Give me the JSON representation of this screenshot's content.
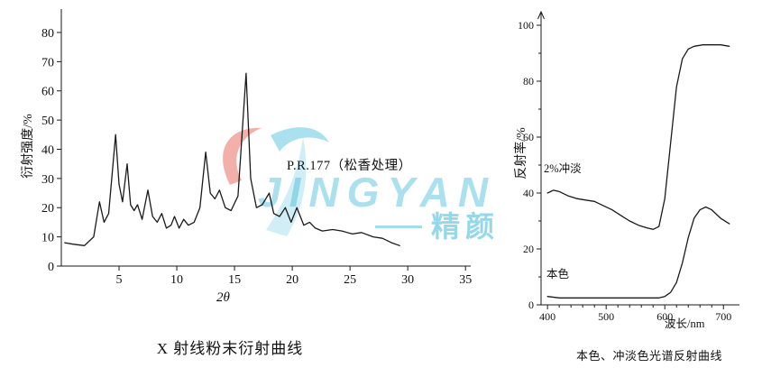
{
  "watermark": {
    "line1": "JINGYAN",
    "line2": "精颜"
  },
  "chart_data": [
    {
      "type": "line",
      "title": "X 射线粉末衍射曲线",
      "xlabel": "2θ",
      "ylabel": "衍射强度/%",
      "annotation": "P.R.177（松香处理）",
      "xlim": [
        0,
        36
      ],
      "ylim": [
        0,
        85
      ],
      "xticks": [
        5,
        10,
        15,
        20,
        25,
        30,
        35
      ],
      "yticks": [
        0,
        10,
        20,
        30,
        40,
        50,
        60,
        70,
        80
      ],
      "grid": false,
      "series": [
        {
          "name": "P.R.177 XRD",
          "x": [
            0.3,
            1,
            2,
            2.8,
            3.3,
            3.7,
            4.1,
            4.7,
            5,
            5.3,
            5.7,
            6,
            6.3,
            6.6,
            7,
            7.5,
            7.9,
            8.3,
            8.7,
            9.1,
            9.5,
            9.8,
            10.2,
            10.6,
            11,
            11.5,
            12,
            12.5,
            12.9,
            13.3,
            13.7,
            14.2,
            14.7,
            15.3,
            16,
            16.4,
            16.9,
            17.4,
            18,
            18.4,
            18.9,
            19.4,
            19.9,
            20.4,
            21,
            21.5,
            22,
            22.6,
            23.5,
            24.3,
            25.2,
            26,
            27,
            27.8,
            28.6,
            29.3
          ],
          "y": [
            8,
            7.5,
            7,
            10,
            22,
            15,
            18,
            45,
            28,
            22,
            35,
            21,
            19,
            21,
            16,
            26,
            17,
            15,
            18,
            13,
            14,
            17,
            13,
            16,
            14,
            15,
            20,
            39,
            25,
            23,
            26,
            20,
            19,
            24,
            66,
            30,
            20,
            21,
            25,
            18,
            17,
            20,
            15,
            20,
            14,
            15,
            13,
            12,
            12.5,
            12,
            11,
            11.5,
            10,
            9.5,
            8,
            7
          ]
        }
      ]
    },
    {
      "type": "line",
      "title": "本色、冲淡色光谱反射曲线",
      "xlabel": "波长/nm",
      "ylabel": "反射率/%",
      "xlim": [
        389,
        715
      ],
      "ylim": [
        0,
        105
      ],
      "xticks": [
        400,
        500,
        600,
        700
      ],
      "yticks": [
        0,
        20,
        40,
        60,
        80,
        100
      ],
      "grid": false,
      "series": [
        {
          "name": "2%冲淡",
          "x": [
            400,
            410,
            420,
            435,
            450,
            465,
            480,
            495,
            510,
            525,
            540,
            555,
            570,
            580,
            590,
            600,
            610,
            620,
            630,
            640,
            650,
            665,
            680,
            695,
            710
          ],
          "y": [
            40,
            41,
            40.5,
            39,
            38,
            37.5,
            37,
            35.5,
            34,
            32,
            30,
            28.5,
            27.5,
            27,
            28,
            38,
            58,
            78,
            88,
            91.5,
            92.5,
            93,
            93,
            93,
            92.5
          ]
        },
        {
          "name": "本色",
          "x": [
            400,
            420,
            450,
            480,
            510,
            540,
            570,
            590,
            600,
            610,
            620,
            630,
            640,
            650,
            660,
            670,
            680,
            695,
            710
          ],
          "y": [
            3,
            2.5,
            2.5,
            2.5,
            2.5,
            2.5,
            2.5,
            2.5,
            3,
            4.5,
            8,
            15,
            24,
            31,
            34,
            35,
            34,
            31,
            29
          ]
        }
      ]
    }
  ]
}
